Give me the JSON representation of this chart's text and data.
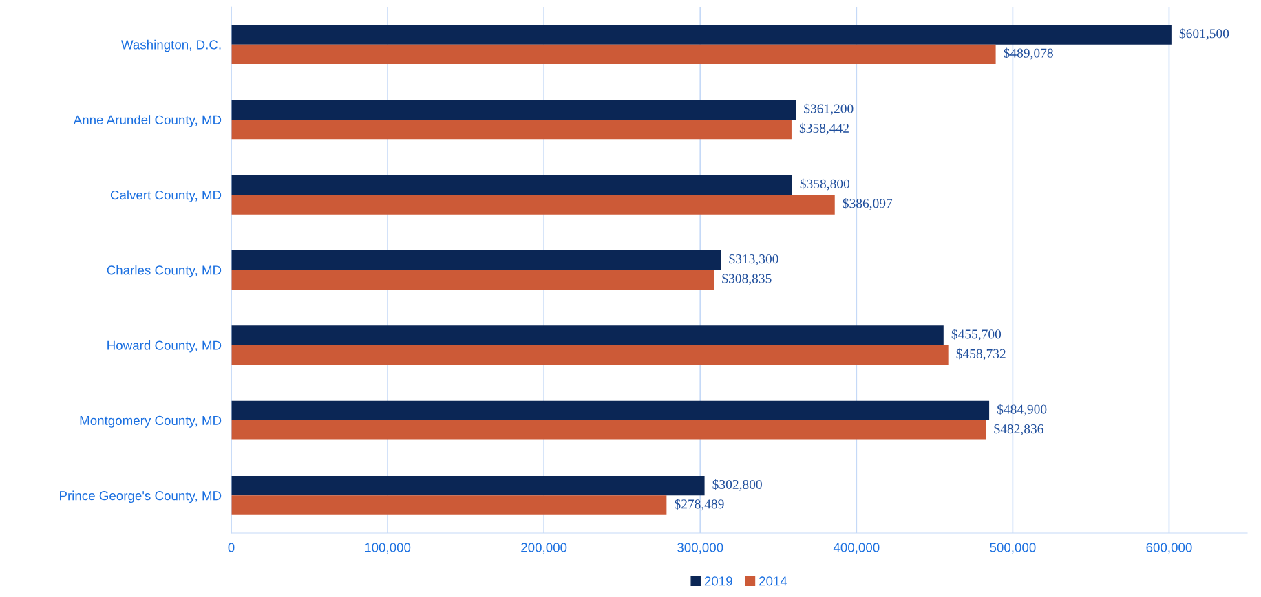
{
  "chart_data": {
    "type": "bar",
    "orientation": "horizontal",
    "categories": [
      "Washington, D.C.",
      "Anne Arundel County, MD",
      "Calvert County, MD",
      "Charles County, MD",
      "Howard County, MD",
      "Montgomery County, MD",
      "Prince George's County, MD"
    ],
    "series": [
      {
        "name": "2019",
        "color": "#0b2655",
        "values": [
          601500,
          361200,
          358800,
          313300,
          455700,
          484900,
          302800
        ],
        "value_labels": [
          "$601,500",
          "$361,200",
          "$358,800",
          "$313,300",
          "$455,700",
          "$484,900",
          "$302,800"
        ]
      },
      {
        "name": "2014",
        "color": "#cc5a37",
        "values": [
          489078,
          358442,
          386097,
          308835,
          458732,
          482836,
          278489
        ],
        "value_labels": [
          "$489,078",
          "$358,442",
          "$386,097",
          "$308,835",
          "$458,732",
          "$482,836",
          "$278,489"
        ]
      }
    ],
    "xlim": [
      0,
      650000
    ],
    "xticks": [
      0,
      {
        "value": 100000,
        "label": "100,000"
      },
      {
        "value": 200000,
        "label": "200,000"
      },
      {
        "value": 300000,
        "label": "300,000"
      },
      {
        "value": 400000,
        "label": "400,000"
      },
      {
        "value": 500000,
        "label": "500,000"
      },
      {
        "value": 600000,
        "label": "600,000"
      }
    ],
    "grid": "x",
    "legend": "bottom"
  }
}
